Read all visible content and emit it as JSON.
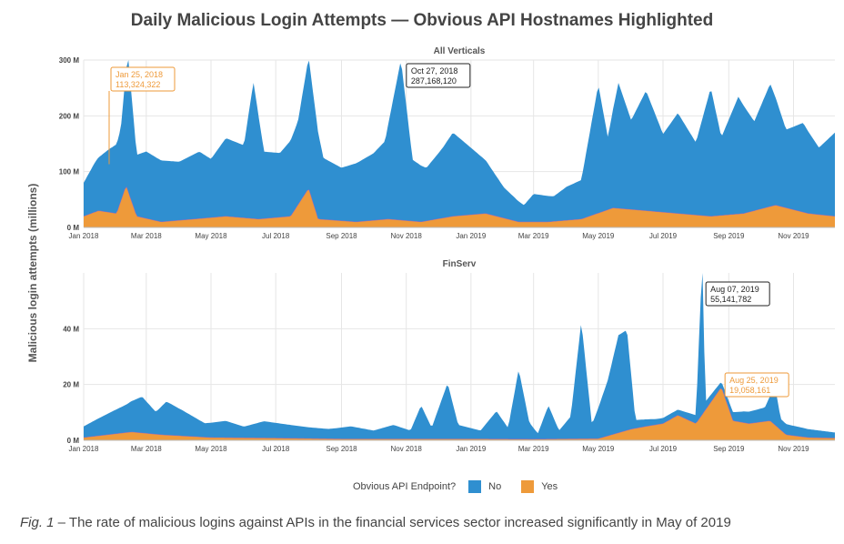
{
  "title": "Daily Malicious Login Attempts — Obvious API Hostnames Highlighted",
  "ylabel": "Malicious login attempts (millions)",
  "legend": {
    "title": "Obvious API Endpoint?",
    "items": [
      {
        "label": "No",
        "color": "#2f8fd0"
      },
      {
        "label": "Yes",
        "color": "#ee9a3a"
      }
    ]
  },
  "caption": {
    "prefix": "Fig. 1",
    "text": " – The rate of malicious logins against APIs in the financial services sector increased significantly in May of 2019"
  },
  "colors": {
    "no": "#2f8fd0",
    "yes": "#ee9a3a",
    "grid": "#e6e6e6",
    "edge": "#9a5bd0"
  },
  "chart_data": [
    {
      "type": "area",
      "stacked": true,
      "title": "All Verticals",
      "x_range": [
        "2018-01-01",
        "2019-12-10"
      ],
      "ylim": [
        0,
        300000000
      ],
      "yticks": [
        0,
        100000000,
        200000000,
        300000000
      ],
      "ytick_labels": [
        "0 M",
        "100 M",
        "200 M",
        "300 M"
      ],
      "xtick_labels": [
        "Jan 2018",
        "Mar 2018",
        "May 2018",
        "Jul 2018",
        "Sep 2018",
        "Nov 2018",
        "Jan 2019",
        "Mar 2019",
        "May 2019",
        "Jul 2019",
        "Sep 2019",
        "Nov 2019"
      ],
      "xtick_dates": [
        "2018-01-01",
        "2018-03-01",
        "2018-05-01",
        "2018-07-01",
        "2018-09-01",
        "2018-11-01",
        "2019-01-01",
        "2019-03-01",
        "2019-05-01",
        "2019-07-01",
        "2019-09-01",
        "2019-11-01"
      ],
      "series": [
        {
          "name": "No",
          "points": [
            [
              "2018-01-01",
              60000000
            ],
            [
              "2018-01-12",
              90000000
            ],
            [
              "2018-01-25",
              113324322
            ],
            [
              "2018-02-05",
              130000000
            ],
            [
              "2018-02-12",
              240000000
            ],
            [
              "2018-02-20",
              110000000
            ],
            [
              "2018-03-01",
              120000000
            ],
            [
              "2018-03-15",
              110000000
            ],
            [
              "2018-04-01",
              105000000
            ],
            [
              "2018-04-20",
              120000000
            ],
            [
              "2018-05-01",
              105000000
            ],
            [
              "2018-05-15",
              140000000
            ],
            [
              "2018-06-01",
              130000000
            ],
            [
              "2018-06-10",
              245000000
            ],
            [
              "2018-06-20",
              120000000
            ],
            [
              "2018-07-05",
              115000000
            ],
            [
              "2018-07-22",
              150000000
            ],
            [
              "2018-08-01",
              235000000
            ],
            [
              "2018-08-15",
              110000000
            ],
            [
              "2018-09-01",
              95000000
            ],
            [
              "2018-09-15",
              105000000
            ],
            [
              "2018-10-01",
              120000000
            ],
            [
              "2018-10-12",
              140000000
            ],
            [
              "2018-10-27",
              287168120
            ],
            [
              "2018-11-07",
              110000000
            ],
            [
              "2018-11-20",
              95000000
            ],
            [
              "2018-12-05",
              125000000
            ],
            [
              "2018-12-15",
              150000000
            ],
            [
              "2019-01-01",
              120000000
            ],
            [
              "2019-01-15",
              95000000
            ],
            [
              "2019-02-01",
              55000000
            ],
            [
              "2019-02-20",
              30000000
            ],
            [
              "2019-03-01",
              50000000
            ],
            [
              "2019-03-20",
              45000000
            ],
            [
              "2019-04-01",
              60000000
            ],
            [
              "2019-04-15",
              70000000
            ],
            [
              "2019-05-01",
              230000000
            ],
            [
              "2019-05-10",
              130000000
            ],
            [
              "2019-05-20",
              225000000
            ],
            [
              "2019-06-01",
              160000000
            ],
            [
              "2019-06-15",
              215000000
            ],
            [
              "2019-07-01",
              140000000
            ],
            [
              "2019-07-15",
              180000000
            ],
            [
              "2019-08-01",
              130000000
            ],
            [
              "2019-08-15",
              230000000
            ],
            [
              "2019-08-25",
              140000000
            ],
            [
              "2019-09-10",
              210000000
            ],
            [
              "2019-09-25",
              160000000
            ],
            [
              "2019-10-10",
              220000000
            ],
            [
              "2019-10-25",
              140000000
            ],
            [
              "2019-11-10",
              160000000
            ],
            [
              "2019-11-25",
              120000000
            ],
            [
              "2019-12-10",
              150000000
            ]
          ]
        },
        {
          "name": "Yes",
          "points": [
            [
              "2018-01-01",
              20000000
            ],
            [
              "2018-01-15",
              30000000
            ],
            [
              "2018-02-01",
              25000000
            ],
            [
              "2018-02-10",
              75000000
            ],
            [
              "2018-02-20",
              20000000
            ],
            [
              "2018-03-15",
              10000000
            ],
            [
              "2018-04-15",
              15000000
            ],
            [
              "2018-05-15",
              20000000
            ],
            [
              "2018-06-15",
              15000000
            ],
            [
              "2018-07-15",
              20000000
            ],
            [
              "2018-08-01",
              70000000
            ],
            [
              "2018-08-10",
              15000000
            ],
            [
              "2018-09-15",
              10000000
            ],
            [
              "2018-10-15",
              15000000
            ],
            [
              "2018-11-15",
              10000000
            ],
            [
              "2018-12-15",
              20000000
            ],
            [
              "2019-01-15",
              25000000
            ],
            [
              "2019-02-15",
              10000000
            ],
            [
              "2019-03-15",
              10000000
            ],
            [
              "2019-04-15",
              15000000
            ],
            [
              "2019-05-15",
              35000000
            ],
            [
              "2019-06-15",
              30000000
            ],
            [
              "2019-07-15",
              25000000
            ],
            [
              "2019-08-15",
              20000000
            ],
            [
              "2019-09-15",
              25000000
            ],
            [
              "2019-10-15",
              40000000
            ],
            [
              "2019-11-15",
              25000000
            ],
            [
              "2019-12-10",
              20000000
            ]
          ]
        }
      ],
      "annotations": [
        {
          "date": "2018-01-25",
          "value": 113324322,
          "label_date": "Jan 25, 2018",
          "label_value": "113,324,322",
          "series": "Yes"
        },
        {
          "date": "2018-10-27",
          "value": 287168120,
          "label_date": "Oct 27, 2018",
          "label_value": "287,168,120",
          "series": "No"
        }
      ]
    },
    {
      "type": "area",
      "stacked": true,
      "title": "FinServ",
      "x_range": [
        "2018-01-01",
        "2019-12-10"
      ],
      "ylim": [
        0,
        60000000
      ],
      "yticks": [
        0,
        20000000,
        40000000
      ],
      "ytick_labels": [
        "0 M",
        "20 M",
        "40 M"
      ],
      "xtick_labels": [
        "Jan 2018",
        "Mar 2018",
        "May 2018",
        "Jul 2018",
        "Sep 2018",
        "Nov 2018",
        "Jan 2019",
        "Mar 2019",
        "May 2019",
        "Jul 2019",
        "Sep 2019",
        "Nov 2019"
      ],
      "xtick_dates": [
        "2018-01-01",
        "2018-03-01",
        "2018-05-01",
        "2018-07-01",
        "2018-09-01",
        "2018-11-01",
        "2019-01-01",
        "2019-03-01",
        "2019-05-01",
        "2019-07-01",
        "2019-09-01",
        "2019-11-01"
      ],
      "series": [
        {
          "name": "No",
          "points": [
            [
              "2018-01-01",
              4000000
            ],
            [
              "2018-01-20",
              7000000
            ],
            [
              "2018-02-10",
              10000000
            ],
            [
              "2018-02-25",
              13000000
            ],
            [
              "2018-03-10",
              8000000
            ],
            [
              "2018-03-20",
              12000000
            ],
            [
              "2018-04-05",
              9000000
            ],
            [
              "2018-04-25",
              5000000
            ],
            [
              "2018-05-15",
              6000000
            ],
            [
              "2018-06-01",
              4000000
            ],
            [
              "2018-06-20",
              6000000
            ],
            [
              "2018-07-10",
              5000000
            ],
            [
              "2018-08-01",
              4000000
            ],
            [
              "2018-08-20",
              3500000
            ],
            [
              "2018-09-10",
              4500000
            ],
            [
              "2018-10-01",
              3000000
            ],
            [
              "2018-10-20",
              5000000
            ],
            [
              "2018-11-05",
              3000000
            ],
            [
              "2018-11-15",
              12000000
            ],
            [
              "2018-11-25",
              4000000
            ],
            [
              "2018-12-10",
              20000000
            ],
            [
              "2018-12-20",
              5000000
            ],
            [
              "2019-01-10",
              3000000
            ],
            [
              "2019-01-25",
              10000000
            ],
            [
              "2019-02-05",
              4000000
            ],
            [
              "2019-02-15",
              25000000
            ],
            [
              "2019-02-25",
              6000000
            ],
            [
              "2019-03-05",
              2000000
            ],
            [
              "2019-03-15",
              12000000
            ],
            [
              "2019-03-25",
              3000000
            ],
            [
              "2019-04-05",
              8000000
            ],
            [
              "2019-04-15",
              42000000
            ],
            [
              "2019-04-25",
              5000000
            ],
            [
              "2019-05-10",
              20000000
            ],
            [
              "2019-05-20",
              35000000
            ],
            [
              "2019-05-28",
              36000000
            ],
            [
              "2019-06-05",
              3000000
            ],
            [
              "2019-06-25",
              2000000
            ],
            [
              "2019-07-15",
              2000000
            ],
            [
              "2019-08-01",
              3000000
            ],
            [
              "2019-08-07",
              55141782
            ],
            [
              "2019-08-10",
              3000000
            ],
            [
              "2019-08-25",
              2000000
            ],
            [
              "2019-09-15",
              4000000
            ],
            [
              "2019-10-05",
              5000000
            ],
            [
              "2019-10-15",
              13000000
            ],
            [
              "2019-10-20",
              4000000
            ],
            [
              "2019-11-15",
              3000000
            ],
            [
              "2019-12-10",
              2000000
            ]
          ]
        },
        {
          "name": "Yes",
          "points": [
            [
              "2018-01-01",
              1000000
            ],
            [
              "2018-02-15",
              3000000
            ],
            [
              "2018-03-15",
              2000000
            ],
            [
              "2018-05-01",
              1000000
            ],
            [
              "2018-07-01",
              800000
            ],
            [
              "2018-09-01",
              500000
            ],
            [
              "2018-11-01",
              500000
            ],
            [
              "2019-01-01",
              500000
            ],
            [
              "2019-03-01",
              400000
            ],
            [
              "2019-05-01",
              600000
            ],
            [
              "2019-06-01",
              4000000
            ],
            [
              "2019-06-15",
              5000000
            ],
            [
              "2019-07-01",
              6000000
            ],
            [
              "2019-07-15",
              9000000
            ],
            [
              "2019-08-01",
              6000000
            ],
            [
              "2019-08-25",
              19058161
            ],
            [
              "2019-09-05",
              7000000
            ],
            [
              "2019-09-20",
              6000000
            ],
            [
              "2019-10-10",
              7000000
            ],
            [
              "2019-10-25",
              2000000
            ],
            [
              "2019-11-15",
              1000000
            ],
            [
              "2019-12-10",
              800000
            ]
          ]
        }
      ],
      "annotations": [
        {
          "date": "2019-08-07",
          "value": 55141782,
          "label_date": "Aug 07, 2019",
          "label_value": "55,141,782",
          "series": "No"
        },
        {
          "date": "2019-08-25",
          "value": 19058161,
          "label_date": "Aug 25, 2019",
          "label_value": "19,058,161",
          "series": "Yes"
        }
      ]
    }
  ]
}
